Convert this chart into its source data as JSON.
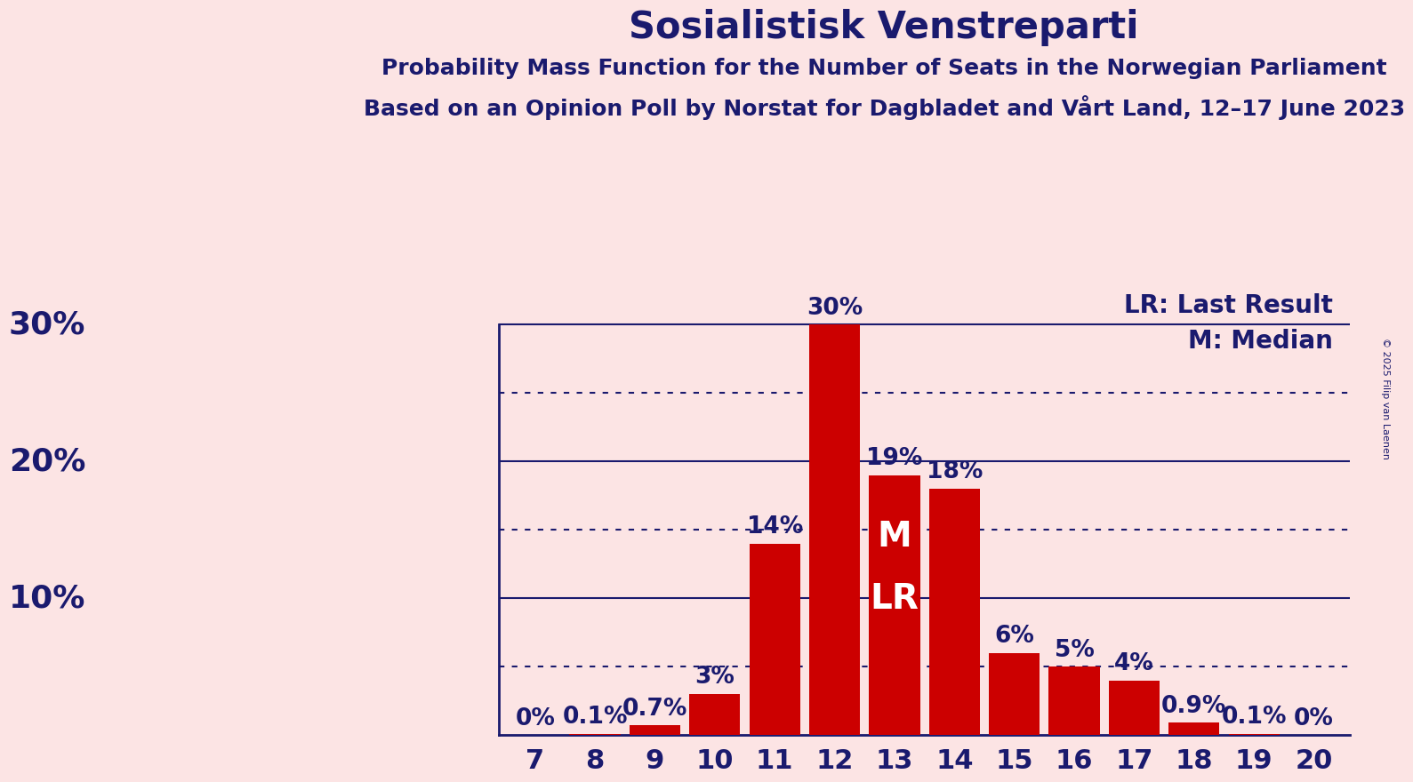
{
  "title": "Sosialistisk Venstreparti",
  "subtitle1": "Probability Mass Function for the Number of Seats in the Norwegian Parliament",
  "subtitle2": "Based on an Opinion Poll by Norstat for Dagbladet and Vårt Land, 12–17 June 2023",
  "copyright": "© 2025 Filip van Laenen",
  "legend_lr": "LR: Last Result",
  "legend_m": "M: Median",
  "seats": [
    7,
    8,
    9,
    10,
    11,
    12,
    13,
    14,
    15,
    16,
    17,
    18,
    19,
    20
  ],
  "values": [
    0.0,
    0.1,
    0.7,
    3.0,
    14.0,
    30.0,
    19.0,
    18.0,
    6.0,
    5.0,
    4.0,
    0.9,
    0.1,
    0.0
  ],
  "bar_color": "#cc0000",
  "bg_color": "#fce4e4",
  "title_color": "#1a1a6e",
  "axis_color": "#1a1a6e",
  "bar_label_color_outside": "#1a1a6e",
  "bar_label_color_inside": "#ffffff",
  "median_seat": 13,
  "lr_seat": 13,
  "ylim": [
    0,
    33
  ],
  "solid_grid": [
    10,
    20,
    30
  ],
  "dotted_grid": [
    5,
    15,
    25
  ],
  "title_fontsize": 30,
  "subtitle_fontsize": 18,
  "tick_fontsize": 22,
  "ytick_fontsize": 26,
  "legend_fontsize": 20,
  "annotation_fontsize": 19,
  "mlr_fontsize": 28
}
